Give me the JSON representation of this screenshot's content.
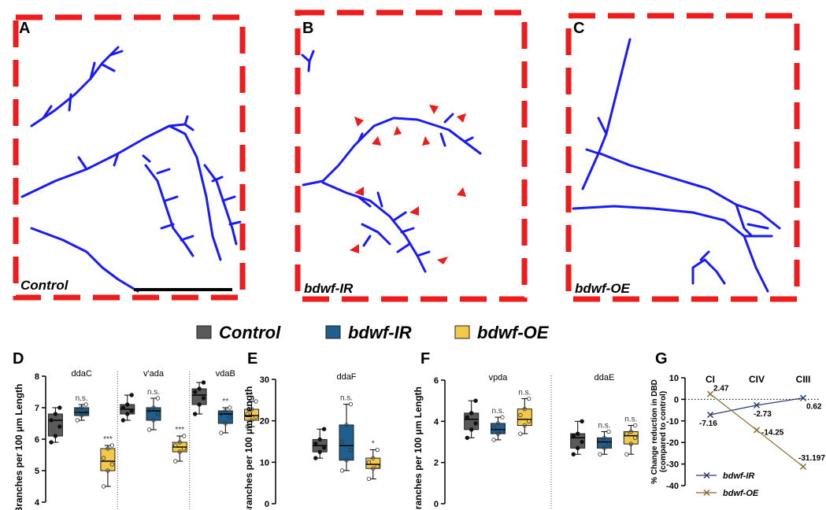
{
  "images": [
    {
      "letter": "A",
      "label": "Control"
    },
    {
      "letter": "B",
      "label": "bdwf-IR"
    },
    {
      "letter": "C",
      "label": "bdwf-OE"
    }
  ],
  "legend": [
    {
      "name": "Control",
      "color": "#5a5a5a"
    },
    {
      "name": "bdwf-IR",
      "color": "#1f5f8f"
    },
    {
      "name": "bdwf-OE",
      "color": "#f3c94b"
    }
  ],
  "chart_data": [
    {
      "type": "box",
      "letter": "D",
      "ylabel": "Branches per 100 μm Length",
      "ylim": [
        4,
        8
      ],
      "yticks": [
        4,
        5,
        6,
        7,
        8
      ],
      "categories": [
        "ddaC",
        "v'ada",
        "vdaB"
      ],
      "series": [
        {
          "color": "#5a5a5a",
          "stats": [
            [
              5.9,
              6.1,
              6.6,
              6.8,
              7.0
            ],
            [
              6.6,
              6.8,
              6.95,
              7.1,
              7.4
            ],
            [
              6.8,
              7.1,
              7.4,
              7.6,
              7.8
            ]
          ],
          "points": [
            [
              5.9,
              6.1,
              6.4,
              6.6,
              6.8,
              7.0
            ],
            [
              6.6,
              6.8,
              6.9,
              7.0,
              7.1,
              7.4
            ],
            [
              6.8,
              7.1,
              7.3,
              7.5,
              7.6,
              7.8
            ]
          ],
          "sig": [
            null,
            null,
            null
          ]
        },
        {
          "color": "#1f5f8f",
          "stats": [
            [
              6.6,
              6.75,
              6.85,
              7.0,
              7.1
            ],
            [
              6.3,
              6.6,
              6.9,
              7.0,
              7.3
            ],
            [
              6.2,
              6.5,
              6.8,
              6.9,
              7.0
            ]
          ],
          "points": [
            [
              6.6,
              6.75,
              6.85,
              6.9,
              7.0,
              7.1
            ],
            [
              6.3,
              6.6,
              6.8,
              6.9,
              7.0,
              7.3
            ],
            [
              6.2,
              6.5,
              6.7,
              6.8,
              6.9,
              7.0
            ]
          ],
          "sig": [
            "n.s.",
            "n.s.",
            "**"
          ]
        },
        {
          "color": "#f3c94b",
          "stats": [
            [
              4.5,
              5.0,
              5.3,
              5.7,
              5.8
            ],
            [
              5.3,
              5.6,
              5.75,
              5.9,
              6.1
            ],
            [
              6.4,
              6.6,
              6.75,
              6.95,
              7.2
            ]
          ],
          "points": [
            [
              4.5,
              5.0,
              5.2,
              5.4,
              5.7,
              5.8
            ],
            [
              5.3,
              5.6,
              5.7,
              5.8,
              5.9,
              6.1
            ],
            [
              6.4,
              6.6,
              6.7,
              6.8,
              6.95,
              7.2
            ]
          ],
          "sig": [
            "***",
            "***",
            "*"
          ]
        }
      ]
    },
    {
      "type": "box",
      "letter": "E",
      "ylabel": "Branches per 100 μm Length",
      "ylim": [
        0,
        30
      ],
      "yticks": [
        0,
        10,
        20,
        30
      ],
      "categories": [
        "ddaF"
      ],
      "series": [
        {
          "color": "#5a5a5a",
          "stats": [
            [
              11,
              12.5,
              14,
              15.5,
              18
            ]
          ],
          "points": [
            [
              11,
              12.5,
              13.5,
              14.5,
              15.5,
              18
            ]
          ],
          "sig": [
            null
          ]
        },
        {
          "color": "#1f5f8f",
          "stats": [
            [
              8,
              10.5,
              14,
              19,
              24
            ]
          ],
          "points": [
            [
              8,
              10.5,
              13,
              15,
              19,
              24
            ]
          ],
          "sig": [
            "n.s."
          ]
        },
        {
          "color": "#f3c94b",
          "stats": [
            [
              6,
              8.5,
              9.5,
              11,
              13
            ]
          ],
          "points": [
            [
              6,
              8.5,
              9,
              10,
              11,
              13
            ]
          ],
          "sig": [
            "*"
          ]
        }
      ]
    },
    {
      "type": "box",
      "letter": "F",
      "ylabel": "Branches per 100 μm Length",
      "ylim": [
        0,
        6
      ],
      "yticks": [
        0,
        2,
        4,
        6
      ],
      "categories": [
        "vpda",
        "ddaE"
      ],
      "series": [
        {
          "color": "#5a5a5a",
          "stats": [
            [
              3.2,
              3.6,
              4.1,
              4.4,
              5.0
            ],
            [
              2.4,
              2.7,
              3.2,
              3.4,
              4.0
            ]
          ],
          "points": [
            [
              3.2,
              3.6,
              3.9,
              4.2,
              4.4,
              5.0
            ],
            [
              2.4,
              2.7,
              3.0,
              3.3,
              3.4,
              4.0
            ]
          ],
          "sig": [
            null,
            null
          ]
        },
        {
          "color": "#1f5f8f",
          "stats": [
            [
              3.1,
              3.4,
              3.6,
              3.9,
              4.2
            ],
            [
              2.4,
              2.7,
              3.0,
              3.2,
              3.5
            ]
          ],
          "points": [
            [
              3.1,
              3.4,
              3.5,
              3.7,
              3.9,
              4.2
            ],
            [
              2.4,
              2.7,
              2.9,
              3.1,
              3.2,
              3.5
            ]
          ],
          "sig": [
            "n.s.",
            "n.s."
          ]
        },
        {
          "color": "#f3c94b",
          "stats": [
            [
              3.4,
              3.8,
              4.1,
              4.6,
              5.1
            ],
            [
              2.4,
              2.9,
              3.3,
              3.5,
              3.8
            ]
          ],
          "points": [
            [
              3.4,
              3.8,
              4.0,
              4.3,
              4.6,
              5.1
            ],
            [
              2.4,
              2.9,
              3.2,
              3.4,
              3.5,
              3.8
            ]
          ],
          "sig": [
            "n.s.",
            "n.s."
          ]
        }
      ]
    },
    {
      "type": "line",
      "letter": "G",
      "ylabel": [
        "% Change reduction in DBD",
        "(compared to control)"
      ],
      "ylim": [
        -40,
        10
      ],
      "yticks": [
        10,
        0,
        -10,
        -20,
        -30,
        -40
      ],
      "zero_line": true,
      "categories": [
        "CI",
        "CIV",
        "CIII"
      ],
      "series": [
        {
          "name": "bdwf-IR",
          "color": "#2b3a7a",
          "values": [
            -7.16,
            -2.73,
            0.62
          ]
        },
        {
          "name": "bdwf-OE",
          "color": "#8a6a2e",
          "values": [
            2.47,
            -14.25,
            -31.197
          ]
        }
      ]
    }
  ]
}
